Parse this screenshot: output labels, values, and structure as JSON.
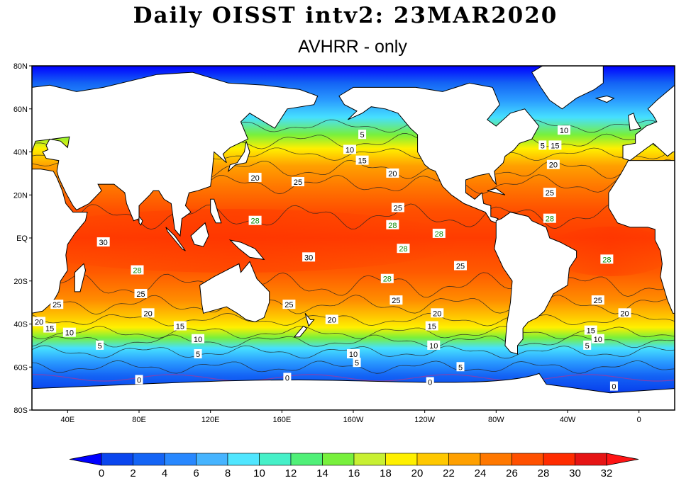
{
  "title": "Daily OISST intv2: 23MAR2020",
  "subtitle": "AVHRR - only",
  "map": {
    "lat_ticks": [
      "80N",
      "60N",
      "40N",
      "20N",
      "EQ",
      "20S",
      "40S",
      "60S",
      "80S"
    ],
    "lon_ticks": [
      "40E",
      "80E",
      "120E",
      "160E",
      "160W",
      "120W",
      "80W",
      "40W",
      "0"
    ],
    "contour_labels": [
      {
        "text": "5",
        "lon": -155,
        "lat": 48
      },
      {
        "text": "10",
        "lon": -162,
        "lat": 41
      },
      {
        "text": "15",
        "lon": -155,
        "lat": 36
      },
      {
        "text": "20",
        "lon": -138,
        "lat": 30
      },
      {
        "text": "20",
        "lon": 145,
        "lat": 28
      },
      {
        "text": "25",
        "lon": 169,
        "lat": 26
      },
      {
        "text": "25",
        "lon": -135,
        "lat": 14
      },
      {
        "text": "28",
        "lon": 145,
        "lat": 8
      },
      {
        "text": "28",
        "lon": -138,
        "lat": 6
      },
      {
        "text": "28",
        "lon": -112,
        "lat": 2
      },
      {
        "text": "28",
        "lon": -132,
        "lat": -5
      },
      {
        "text": "30",
        "lon": 60,
        "lat": -2
      },
      {
        "text": "30",
        "lon": 175,
        "lat": -9
      },
      {
        "text": "28",
        "lon": -141,
        "lat": -19
      },
      {
        "text": "28",
        "lon": 79,
        "lat": -15
      },
      {
        "text": "25",
        "lon": 81,
        "lat": -26
      },
      {
        "text": "25",
        "lon": 34,
        "lat": -31
      },
      {
        "text": "25",
        "lon": 164,
        "lat": -31
      },
      {
        "text": "25",
        "lon": -100,
        "lat": -13
      },
      {
        "text": "25",
        "lon": -136,
        "lat": -29
      },
      {
        "text": "20",
        "lon": 85,
        "lat": -35
      },
      {
        "text": "20",
        "lon": 24,
        "lat": -39
      },
      {
        "text": "20",
        "lon": -172,
        "lat": -38
      },
      {
        "text": "20",
        "lon": -113,
        "lat": -35
      },
      {
        "text": "15",
        "lon": 30,
        "lat": -42
      },
      {
        "text": "15",
        "lon": 103,
        "lat": -41
      },
      {
        "text": "15",
        "lon": -116,
        "lat": -41
      },
      {
        "text": "10",
        "lon": 41,
        "lat": -44
      },
      {
        "text": "10",
        "lon": 113,
        "lat": -47
      },
      {
        "text": "10",
        "lon": -115,
        "lat": -50
      },
      {
        "text": "10",
        "lon": -160,
        "lat": -54
      },
      {
        "text": "5",
        "lon": 58,
        "lat": -50
      },
      {
        "text": "5",
        "lon": 113,
        "lat": -54
      },
      {
        "text": "5",
        "lon": -158,
        "lat": -58
      },
      {
        "text": "5",
        "lon": -100,
        "lat": -60
      },
      {
        "text": "0",
        "lon": 80,
        "lat": -66
      },
      {
        "text": "0",
        "lon": 163,
        "lat": -65
      },
      {
        "text": "0",
        "lon": -117,
        "lat": -67
      },
      {
        "text": "0",
        "lon": -14,
        "lat": -69
      },
      {
        "text": "10",
        "lon": -42,
        "lat": 50
      },
      {
        "text": "5",
        "lon": -54,
        "lat": 43
      },
      {
        "text": "15",
        "lon": -47,
        "lat": 43
      },
      {
        "text": "20",
        "lon": -48,
        "lat": 34
      },
      {
        "text": "25",
        "lon": -50,
        "lat": 21
      },
      {
        "text": "28",
        "lon": -50,
        "lat": 9
      },
      {
        "text": "28",
        "lon": -18,
        "lat": -10
      },
      {
        "text": "25",
        "lon": -23,
        "lat": -29
      },
      {
        "text": "20",
        "lon": -8,
        "lat": -35
      },
      {
        "text": "15",
        "lon": -27,
        "lat": -43
      },
      {
        "text": "10",
        "lon": -23,
        "lat": -47
      },
      {
        "text": "5",
        "lon": -29,
        "lat": -50
      }
    ]
  },
  "colorbar": {
    "labels": [
      "0",
      "2",
      "4",
      "6",
      "8",
      "10",
      "12",
      "14",
      "16",
      "18",
      "20",
      "22",
      "24",
      "26",
      "28",
      "30",
      "32"
    ],
    "colors": [
      "#0028d8",
      "#0a46ee",
      "#1464f5",
      "#2888ff",
      "#46b4ff",
      "#50e6ff",
      "#46f0c8",
      "#50f078",
      "#78f03c",
      "#c8f032",
      "#fff000",
      "#ffc800",
      "#ffa000",
      "#ff7800",
      "#ff5000",
      "#ff2c00",
      "#e61414"
    ],
    "under_color": "#0000ff",
    "over_color": "#ff1414"
  },
  "colors": {
    "land": "#ffffff",
    "coast": "#000000",
    "zero_contour": "#9a3aa0"
  }
}
